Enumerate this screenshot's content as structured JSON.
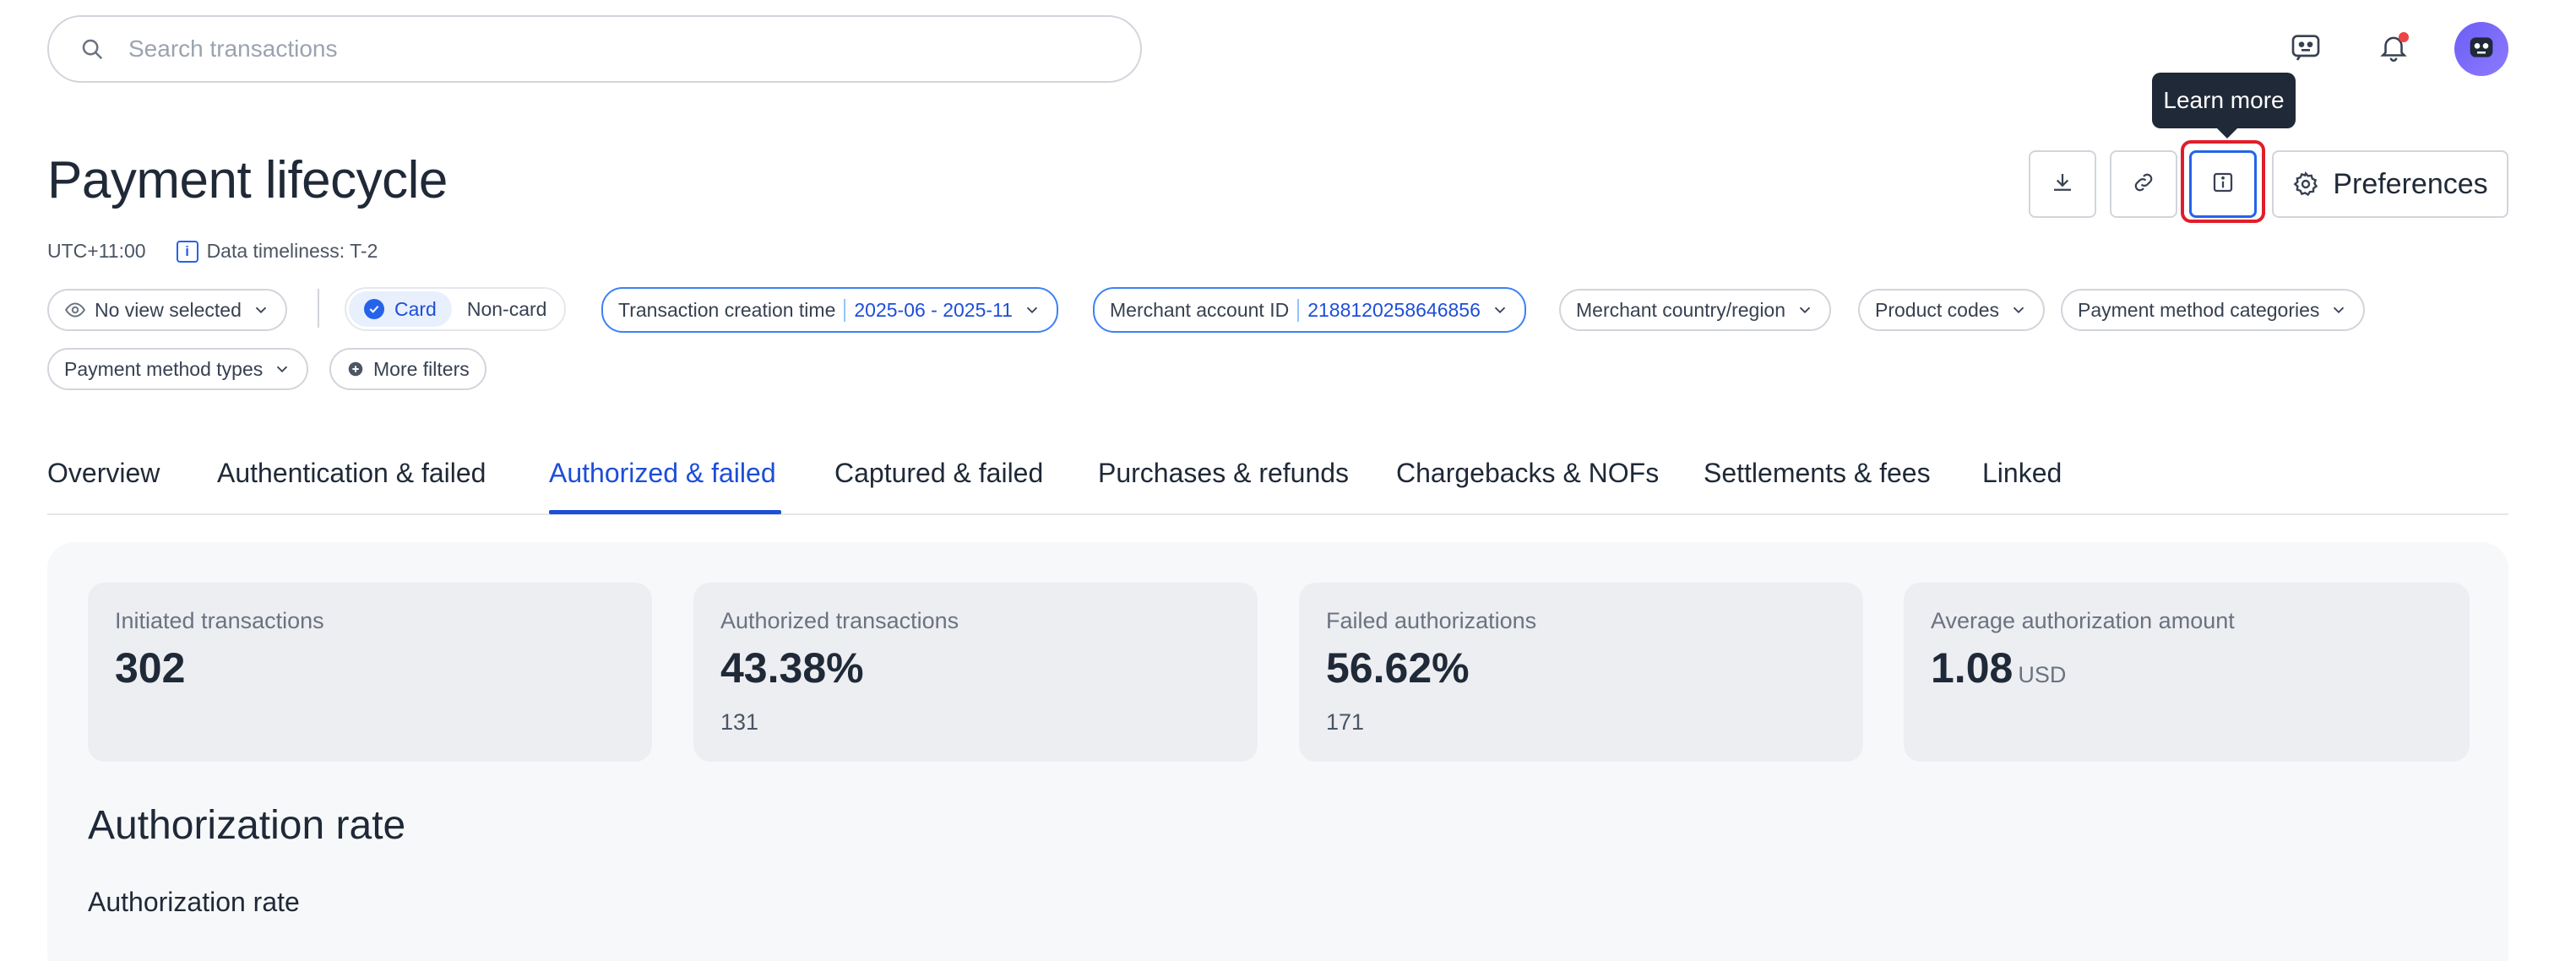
{
  "search": {
    "placeholder": "Search transactions"
  },
  "header": {
    "bell_has_notification": true
  },
  "page": {
    "title": "Payment lifecycle",
    "timezone": "UTC+11:00",
    "timeliness": "Data timeliness: T-2"
  },
  "actions": {
    "tooltip": "Learn more",
    "preferences_label": "Preferences"
  },
  "filters": {
    "view": "No view selected",
    "type_options": [
      "Card",
      "Non-card"
    ],
    "type_selected": "Card",
    "txn_time_label": "Transaction creation time",
    "txn_time_value": "2025-06 - 2025-11",
    "merchant_label": "Merchant account ID",
    "merchant_value": "2188120258646856",
    "country": "Merchant country/region",
    "product": "Product codes",
    "pm_categories": "Payment method categories",
    "pm_types": "Payment method types",
    "more": "More filters"
  },
  "tabs": [
    "Overview",
    "Authentication & failed",
    "Authorized & failed",
    "Captured & failed",
    "Purchases & refunds",
    "Chargebacks & NOFs",
    "Settlements & fees",
    "Linked"
  ],
  "active_tab": "Authorized & failed",
  "metrics": [
    {
      "label": "Initiated transactions",
      "value": "302",
      "sub": ""
    },
    {
      "label": "Authorized transactions",
      "value": "43.38%",
      "sub": "131"
    },
    {
      "label": "Failed authorizations",
      "value": "56.62%",
      "sub": "171"
    },
    {
      "label": "Average authorization amount",
      "value": "1.08",
      "unit": "USD",
      "sub": ""
    }
  ],
  "section": {
    "title": "Authorization rate",
    "subtitle": "Authorization rate"
  },
  "colors": {
    "accent": "#1d4ed8",
    "highlight": "#e11d2b",
    "tooltip_bg": "#1f2937"
  }
}
